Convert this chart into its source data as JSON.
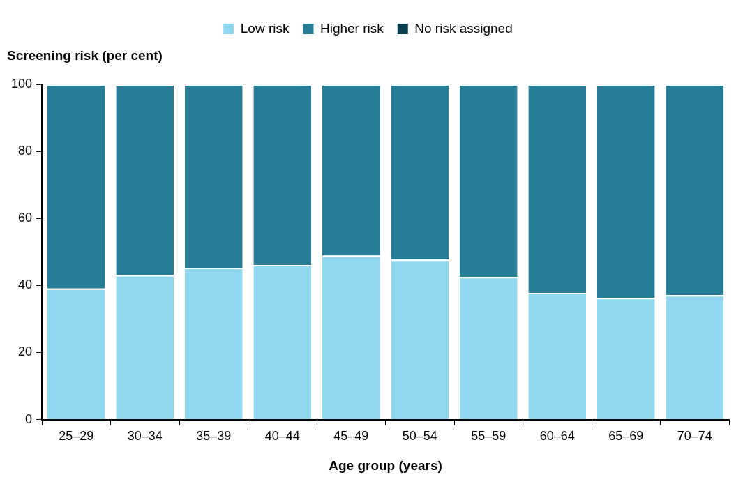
{
  "chart_data": {
    "type": "bar",
    "stacked": true,
    "xlabel": "Age group (years)",
    "ylabel": "Screening risk (per cent)",
    "categories": [
      "25–29",
      "30–34",
      "35–39",
      "40–44",
      "45–49",
      "50–54",
      "55–59",
      "60–64",
      "65–69",
      "70–74"
    ],
    "series": [
      {
        "name": "Low risk",
        "color": "#8fd8f0",
        "values": [
          39.1,
          43.1,
          45.3,
          46.1,
          48.9,
          47.7,
          42.5,
          37.8,
          36.3,
          37.1
        ]
      },
      {
        "name": "Higher risk",
        "color": "#277c96",
        "values": [
          60.9,
          56.9,
          54.7,
          53.9,
          51.1,
          52.3,
          57.5,
          62.2,
          63.7,
          62.9
        ]
      },
      {
        "name": "No risk assigned",
        "color": "#0b3f52",
        "values": [
          null,
          null,
          null,
          null,
          null,
          null,
          null,
          null,
          null,
          null
        ]
      }
    ],
    "ylim": [
      0,
      100
    ],
    "yticks": [
      0,
      20,
      40,
      60,
      80,
      100
    ],
    "grid": false,
    "legend": "top"
  }
}
